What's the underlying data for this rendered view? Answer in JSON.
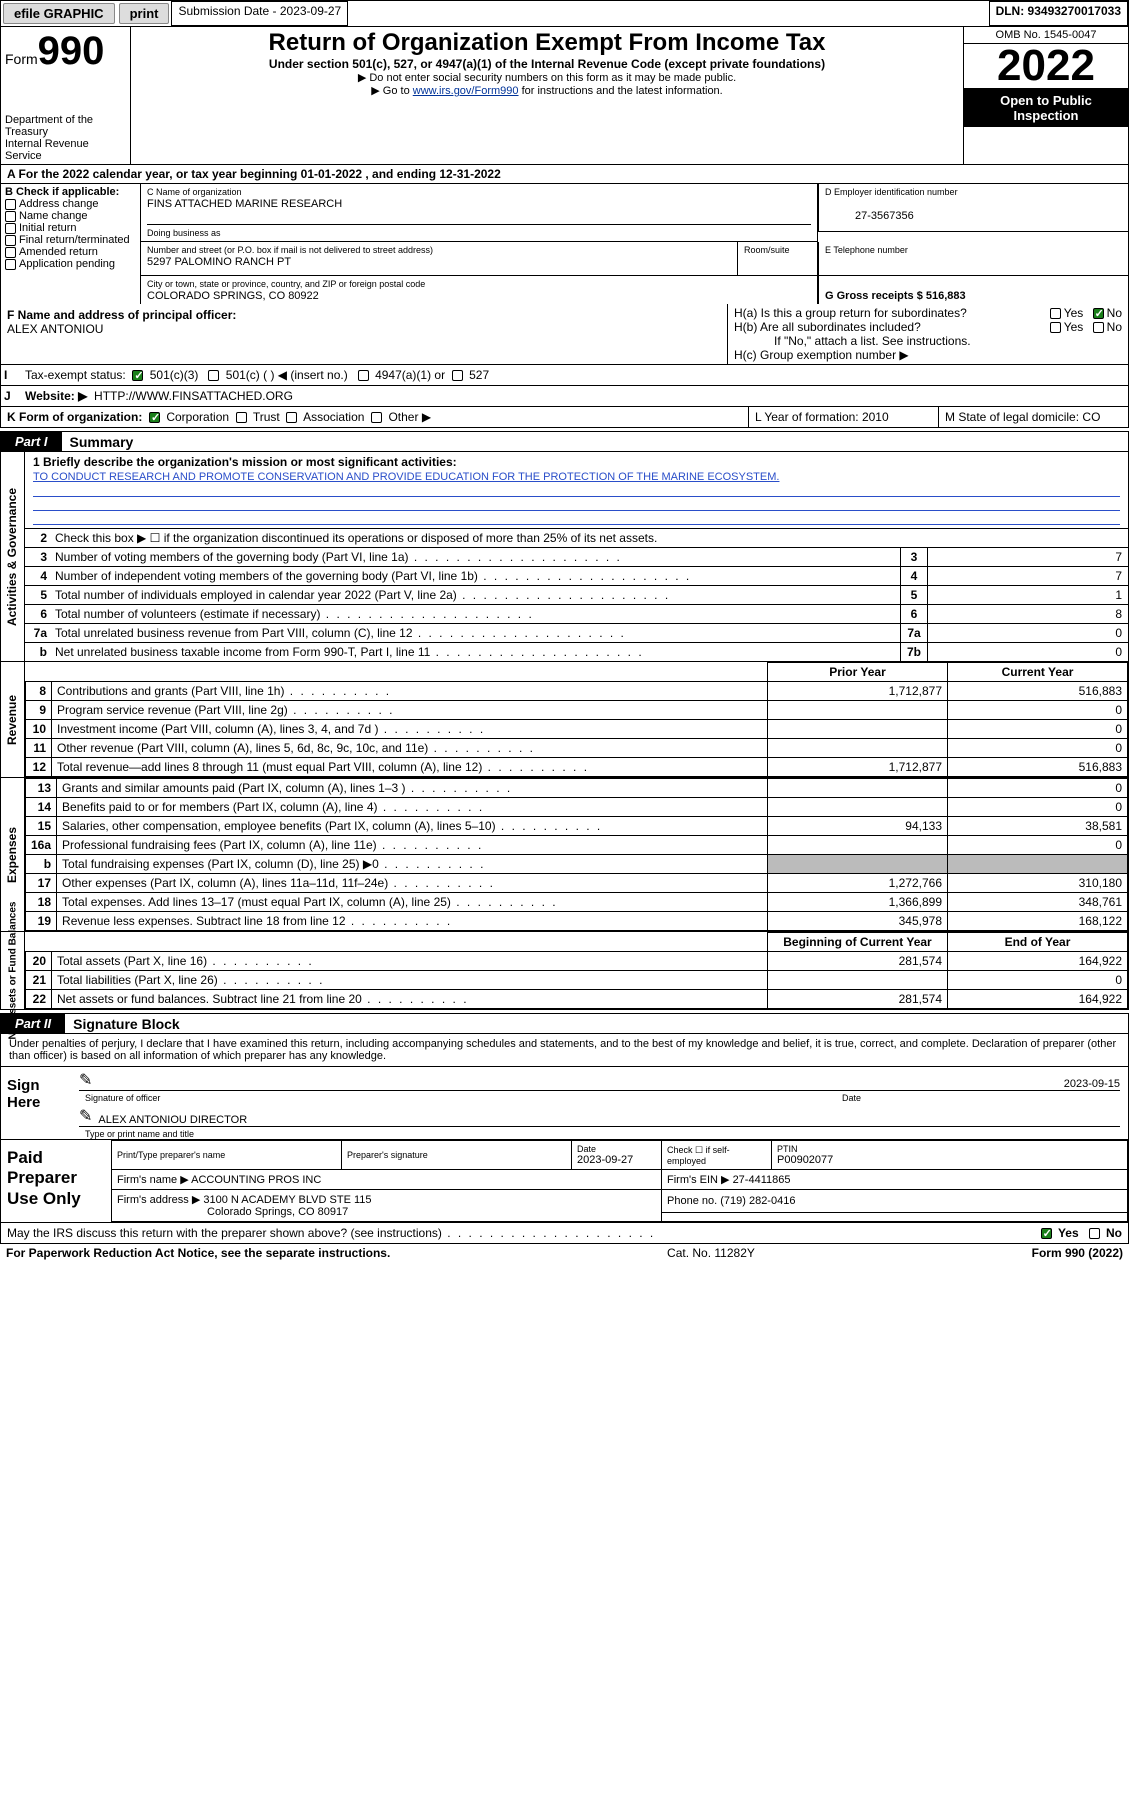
{
  "topbar": {
    "efile_label": "efile GRAPHIC",
    "print_label": "print",
    "submission_label": "Submission Date - 2023-09-27",
    "dln_label": "DLN: 93493270017033"
  },
  "header": {
    "form_word": "Form",
    "form_number": "990",
    "dept": "Department of the Treasury",
    "irs": "Internal Revenue Service",
    "title": "Return of Organization Exempt From Income Tax",
    "subtitle": "Under section 501(c), 527, or 4947(a)(1) of the Internal Revenue Code (except private foundations)",
    "note1": "▶ Do not enter social security numbers on this form as it may be made public.",
    "note2_pre": "▶ Go to ",
    "note2_link": "www.irs.gov/Form990",
    "note2_post": " for instructions and the latest information.",
    "omb": "OMB No. 1545-0047",
    "year": "2022",
    "inspect": "Open to Public Inspection"
  },
  "rowA": "A For the 2022 calendar year, or tax year beginning 01-01-2022   , and ending 12-31-2022",
  "boxB": {
    "title": "B Check if applicable:",
    "items": [
      "Address change",
      "Name change",
      "Initial return",
      "Final return/terminated",
      "Amended return",
      "Application pending"
    ]
  },
  "boxC": {
    "name_label": "C Name of organization",
    "name": "FINS ATTACHED MARINE RESEARCH",
    "dba_label": "Doing business as",
    "addr_label": "Number and street (or P.O. box if mail is not delivered to street address)",
    "room_label": "Room/suite",
    "addr": "5297 PALOMINO RANCH PT",
    "city_label": "City or town, state or province, country, and ZIP or foreign postal code",
    "city": "COLORADO SPRINGS, CO  80922"
  },
  "boxD": {
    "label": "D Employer identification number",
    "value": "27-3567356"
  },
  "boxE": {
    "label": "E Telephone number",
    "value": ""
  },
  "boxG": {
    "label": "G Gross receipts $ 516,883"
  },
  "boxF": {
    "label": "F  Name and address of principal officer:",
    "name": "ALEX ANTONIOU"
  },
  "boxH": {
    "a": "H(a)  Is this a group return for subordinates?",
    "b": "H(b)  Are all subordinates included?",
    "b_note": "If \"No,\" attach a list. See instructions.",
    "c": "H(c)  Group exemption number ▶",
    "yes": "Yes",
    "no": "No"
  },
  "rowI": {
    "label": "Tax-exempt status:",
    "opts": [
      "501(c)(3)",
      "501(c) (  ) ◀ (insert no.)",
      "4947(a)(1) or",
      "527"
    ]
  },
  "rowJ": {
    "label": "Website: ▶",
    "value": "HTTP://WWW.FINSATTACHED.ORG"
  },
  "rowK": {
    "label": "K Form of organization:",
    "opts": [
      "Corporation",
      "Trust",
      "Association",
      "Other ▶"
    ],
    "L": "L Year of formation: 2010",
    "M": "M State of legal domicile: CO"
  },
  "partI": {
    "tag": "Part I",
    "title": "Summary"
  },
  "mission": {
    "q": "1  Briefly describe the organization's mission or most significant activities:",
    "text": "TO CONDUCT RESEARCH AND PROMOTE CONSERVATION AND PROVIDE EDUCATION FOR THE PROTECTION OF THE MARINE ECOSYSTEM."
  },
  "govRows": [
    {
      "n": "2",
      "d": "Check this box ▶ ☐  if the organization discontinued its operations or disposed of more than 25% of its net assets.",
      "k": "",
      "v": ""
    },
    {
      "n": "3",
      "d": "Number of voting members of the governing body (Part VI, line 1a)",
      "k": "3",
      "v": "7"
    },
    {
      "n": "4",
      "d": "Number of independent voting members of the governing body (Part VI, line 1b)",
      "k": "4",
      "v": "7"
    },
    {
      "n": "5",
      "d": "Total number of individuals employed in calendar year 2022 (Part V, line 2a)",
      "k": "5",
      "v": "1"
    },
    {
      "n": "6",
      "d": "Total number of volunteers (estimate if necessary)",
      "k": "6",
      "v": "8"
    },
    {
      "n": "7a",
      "d": "Total unrelated business revenue from Part VIII, column (C), line 12",
      "k": "7a",
      "v": "0"
    },
    {
      "n": "b",
      "d": "Net unrelated business taxable income from Form 990-T, Part I, line 11",
      "k": "7b",
      "v": "0"
    }
  ],
  "finHeaders": {
    "prior": "Prior Year",
    "current": "Current Year",
    "begin": "Beginning of Current Year",
    "end": "End of Year"
  },
  "revenue": [
    {
      "n": "8",
      "d": "Contributions and grants (Part VIII, line 1h)",
      "p": "1,712,877",
      "c": "516,883"
    },
    {
      "n": "9",
      "d": "Program service revenue (Part VIII, line 2g)",
      "p": "",
      "c": "0"
    },
    {
      "n": "10",
      "d": "Investment income (Part VIII, column (A), lines 3, 4, and 7d )",
      "p": "",
      "c": "0"
    },
    {
      "n": "11",
      "d": "Other revenue (Part VIII, column (A), lines 5, 6d, 8c, 9c, 10c, and 11e)",
      "p": "",
      "c": "0"
    },
    {
      "n": "12",
      "d": "Total revenue—add lines 8 through 11 (must equal Part VIII, column (A), line 12)",
      "p": "1,712,877",
      "c": "516,883"
    }
  ],
  "expenses": [
    {
      "n": "13",
      "d": "Grants and similar amounts paid (Part IX, column (A), lines 1–3 )",
      "p": "",
      "c": "0"
    },
    {
      "n": "14",
      "d": "Benefits paid to or for members (Part IX, column (A), line 4)",
      "p": "",
      "c": "0"
    },
    {
      "n": "15",
      "d": "Salaries, other compensation, employee benefits (Part IX, column (A), lines 5–10)",
      "p": "94,133",
      "c": "38,581"
    },
    {
      "n": "16a",
      "d": "Professional fundraising fees (Part IX, column (A), line 11e)",
      "p": "",
      "c": "0"
    },
    {
      "n": "b",
      "d": "Total fundraising expenses (Part IX, column (D), line 25) ▶0",
      "p": "shade",
      "c": "shade"
    },
    {
      "n": "17",
      "d": "Other expenses (Part IX, column (A), lines 11a–11d, 11f–24e)",
      "p": "1,272,766",
      "c": "310,180"
    },
    {
      "n": "18",
      "d": "Total expenses. Add lines 13–17 (must equal Part IX, column (A), line 25)",
      "p": "1,366,899",
      "c": "348,761"
    },
    {
      "n": "19",
      "d": "Revenue less expenses. Subtract line 18 from line 12",
      "p": "345,978",
      "c": "168,122"
    }
  ],
  "netassets": [
    {
      "n": "20",
      "d": "Total assets (Part X, line 16)",
      "p": "281,574",
      "c": "164,922"
    },
    {
      "n": "21",
      "d": "Total liabilities (Part X, line 26)",
      "p": "",
      "c": "0"
    },
    {
      "n": "22",
      "d": "Net assets or fund balances. Subtract line 21 from line 20",
      "p": "281,574",
      "c": "164,922"
    }
  ],
  "vlabels": {
    "gov": "Activities & Governance",
    "rev": "Revenue",
    "exp": "Expenses",
    "na": "Net Assets or\nFund Balances"
  },
  "partII": {
    "tag": "Part II",
    "title": "Signature Block"
  },
  "declare": "Under penalties of perjury, I declare that I have examined this return, including accompanying schedules and statements, and to the best of my knowledge and belief, it is true, correct, and complete. Declaration of preparer (other than officer) is based on all information of which preparer has any knowledge.",
  "sign": {
    "here": "Sign Here",
    "officer_cap": "Signature of officer",
    "date_cap": "Date",
    "date": "2023-09-15",
    "name": "ALEX ANTONIOU  DIRECTOR",
    "name_cap": "Type or print name and title"
  },
  "prep": {
    "title": "Paid Preparer Use Only",
    "h_name": "Print/Type preparer's name",
    "h_sig": "Preparer's signature",
    "h_date_l": "Date",
    "h_date_v": "2023-09-27",
    "h_self": "Check ☐ if self-employed",
    "h_ptin_l": "PTIN",
    "h_ptin_v": "P00902077",
    "firm_l": "Firm's name   ▶",
    "firm_v": "ACCOUNTING PROS INC",
    "ein_l": "Firm's EIN ▶",
    "ein_v": "27-4411865",
    "addr_l": "Firm's address ▶",
    "addr_v": "3100 N ACADEMY BLVD STE 115",
    "addr2": "Colorado Springs, CO  80917",
    "phone_l": "Phone no.",
    "phone_v": "(719) 282-0416"
  },
  "footer": {
    "q": "May the IRS discuss this return with the preparer shown above? (see instructions)",
    "yes": "Yes",
    "no": "No"
  },
  "bottom": {
    "l": "For Paperwork Reduction Act Notice, see the separate instructions.",
    "m": "Cat. No. 11282Y",
    "r": "Form 990 (2022)"
  }
}
